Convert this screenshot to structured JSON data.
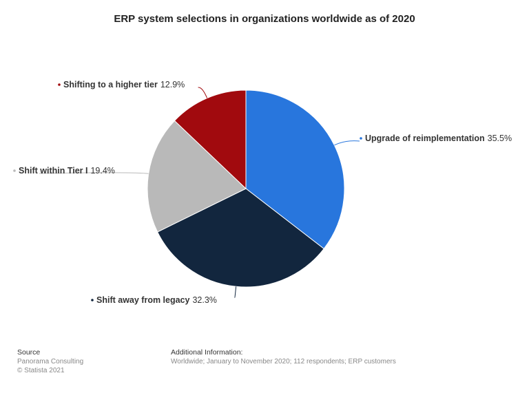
{
  "chart_data": {
    "type": "pie",
    "title": "ERP system selections in organizations worldwide as of 2020",
    "categories": [
      "Upgrade of reimplementation",
      "Shift away from legacy",
      "Shift within Tier I",
      "Shifting to a higher tier"
    ],
    "values": [
      35.5,
      32.3,
      19.4,
      12.9
    ],
    "value_labels": [
      "35.5%",
      "32.3%",
      "19.4%",
      "12.9%"
    ],
    "colors": [
      "#2876dd",
      "#12263e",
      "#b9b9b9",
      "#a10a0e"
    ]
  },
  "footer": {
    "source_heading": "Source",
    "source_lines": [
      "Panorama Consulting",
      "© Statista 2021"
    ],
    "info_heading": "Additional Information:",
    "info_text": "Worldwide; January to November 2020; 112 respondents; ERP customers"
  }
}
